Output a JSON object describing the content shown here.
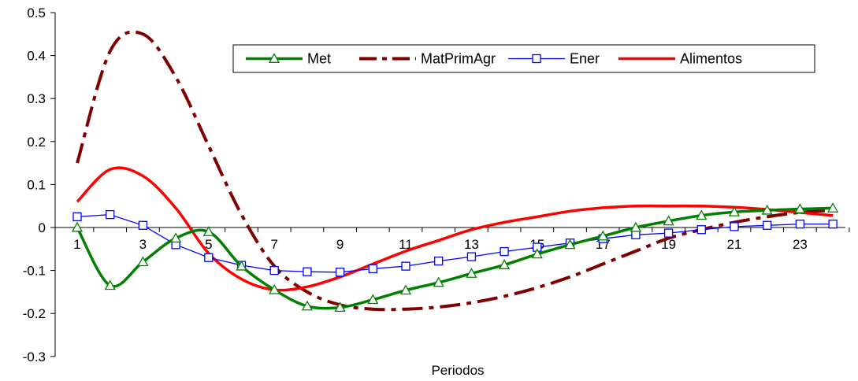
{
  "chart_data": {
    "type": "line",
    "title": "",
    "xlabel": "Periodos",
    "ylabel": "",
    "x": [
      1,
      2,
      3,
      4,
      5,
      6,
      7,
      8,
      9,
      10,
      11,
      12,
      13,
      14,
      15,
      16,
      17,
      18,
      19,
      20,
      21,
      22,
      23,
      24
    ],
    "x_tick_labels": [
      "1",
      "3",
      "5",
      "7",
      "9",
      "11",
      "13",
      "15",
      "17",
      "19",
      "21",
      "23"
    ],
    "x_tick_positions": [
      1,
      3,
      5,
      7,
      9,
      11,
      13,
      15,
      17,
      19,
      21,
      23
    ],
    "y_tick_labels": [
      "0.5",
      "0.4",
      "0.3",
      "0.2",
      "0.1",
      "0",
      "-0.1",
      "-0.2",
      "-0.3"
    ],
    "y_tick_values": [
      0.5,
      0.4,
      0.3,
      0.2,
      0.1,
      0,
      -0.1,
      -0.2,
      -0.3
    ],
    "ylim": [
      -0.3,
      0.5
    ],
    "xlim": [
      1,
      24
    ],
    "grid": false,
    "legend_position": "top-right",
    "series": [
      {
        "name": "Met",
        "color": "#008000",
        "style": "solid-triangle",
        "values": [
          0.0,
          -0.135,
          -0.08,
          -0.025,
          -0.01,
          -0.09,
          -0.145,
          -0.183,
          -0.186,
          -0.168,
          -0.146,
          -0.128,
          -0.107,
          -0.087,
          -0.062,
          -0.04,
          -0.02,
          0.0,
          0.015,
          0.028,
          0.036,
          0.04,
          0.043,
          0.045
        ]
      },
      {
        "name": "MatPrimAgr",
        "color": "#800000",
        "style": "dashdot",
        "values": [
          0.15,
          0.41,
          0.45,
          0.35,
          0.19,
          0.03,
          -0.09,
          -0.15,
          -0.18,
          -0.19,
          -0.19,
          -0.185,
          -0.175,
          -0.16,
          -0.14,
          -0.115,
          -0.085,
          -0.055,
          -0.025,
          -0.005,
          0.012,
          0.025,
          0.035,
          0.04
        ]
      },
      {
        "name": "Ener",
        "color": "#0000FF",
        "style": "thin-square",
        "values": [
          0.025,
          0.03,
          0.005,
          -0.04,
          -0.07,
          -0.088,
          -0.1,
          -0.103,
          -0.104,
          -0.096,
          -0.09,
          -0.078,
          -0.068,
          -0.056,
          -0.046,
          -0.036,
          -0.026,
          -0.017,
          -0.013,
          -0.005,
          0.002,
          0.005,
          0.008,
          0.008
        ]
      },
      {
        "name": "Alimentos",
        "color": "#FF0000",
        "style": "solid",
        "values": [
          0.06,
          0.135,
          0.12,
          0.045,
          -0.06,
          -0.12,
          -0.145,
          -0.138,
          -0.115,
          -0.085,
          -0.055,
          -0.03,
          -0.005,
          0.012,
          0.025,
          0.038,
          0.046,
          0.05,
          0.05,
          0.05,
          0.047,
          0.042,
          0.035,
          0.028
        ]
      }
    ]
  }
}
